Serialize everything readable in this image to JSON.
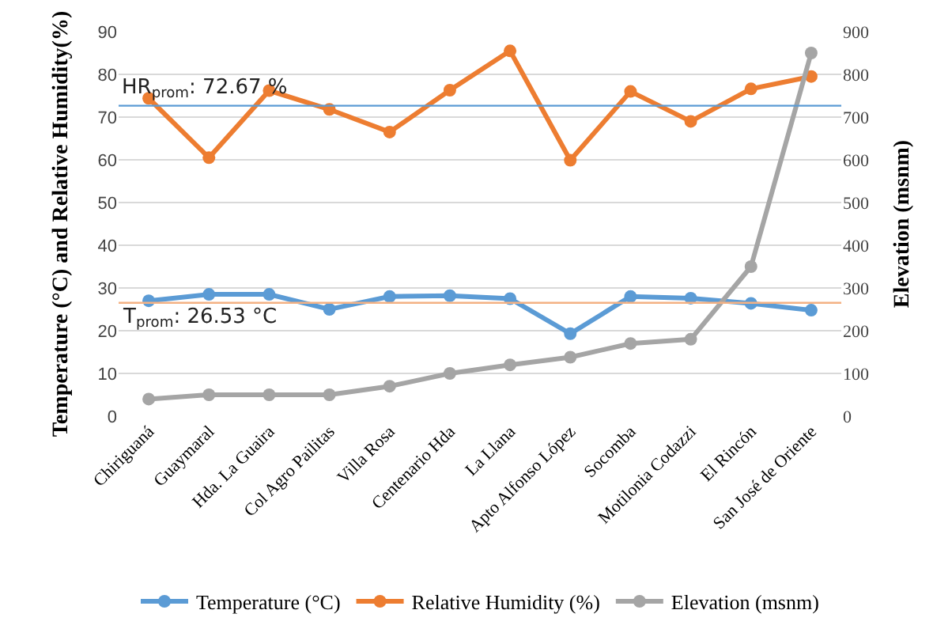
{
  "chart_data": {
    "type": "line",
    "ylabel": "Temperature (°C) and Relative Humidity(%)",
    "y2label": "Elevation (msnm)",
    "categories": [
      "Chiriguaná",
      "Guaymaral",
      "Hda. La Guaira",
      "Col Agro Pailitas",
      "Villa Rosa",
      "Centenario Hda",
      "La Llana",
      "Apto Alfonso López",
      "Socomba",
      "Motilonia Codazzi",
      "El Rincón",
      "San José de Oriente"
    ],
    "series": [
      {
        "name": "Temperature (°C)",
        "color": "#5b9bd5",
        "values": [
          27,
          28.5,
          28.5,
          25,
          28,
          28.2,
          27.5,
          19.3,
          28,
          27.6,
          26.4,
          24.8
        ]
      },
      {
        "name": "Relative Humidity (%)",
        "color": "#ed7d31",
        "values": [
          74.4,
          60.5,
          76.2,
          71.8,
          66.5,
          76.3,
          85.5,
          59.9,
          76,
          69,
          76.6,
          79.5
        ]
      },
      {
        "name": "Elevation (msnm)",
        "color": "#a5a5a5",
        "axis": "y2",
        "values": [
          40,
          50,
          50,
          50,
          70,
          100,
          120,
          138,
          170,
          180,
          350,
          850
        ]
      }
    ],
    "ylim": [
      0,
      90
    ],
    "yticks": [
      0,
      10,
      20,
      30,
      40,
      50,
      60,
      70,
      80,
      90
    ],
    "y2lim": [
      0,
      900
    ],
    "y2ticks": [
      0,
      100,
      200,
      300,
      400,
      500,
      600,
      700,
      800,
      900
    ],
    "ref_lines": [
      {
        "axis": "y",
        "value": 72.67,
        "label": "HR$_{prom}$: 72.67 %",
        "color": "#5b9bd5"
      },
      {
        "axis": "y",
        "value": 26.53,
        "label": "T$_{prom}$: 26.53 °C",
        "color": "#f4b183"
      }
    ],
    "grid": "y",
    "legend": "bottom",
    "marker": "circle",
    "line_style": "solid"
  }
}
